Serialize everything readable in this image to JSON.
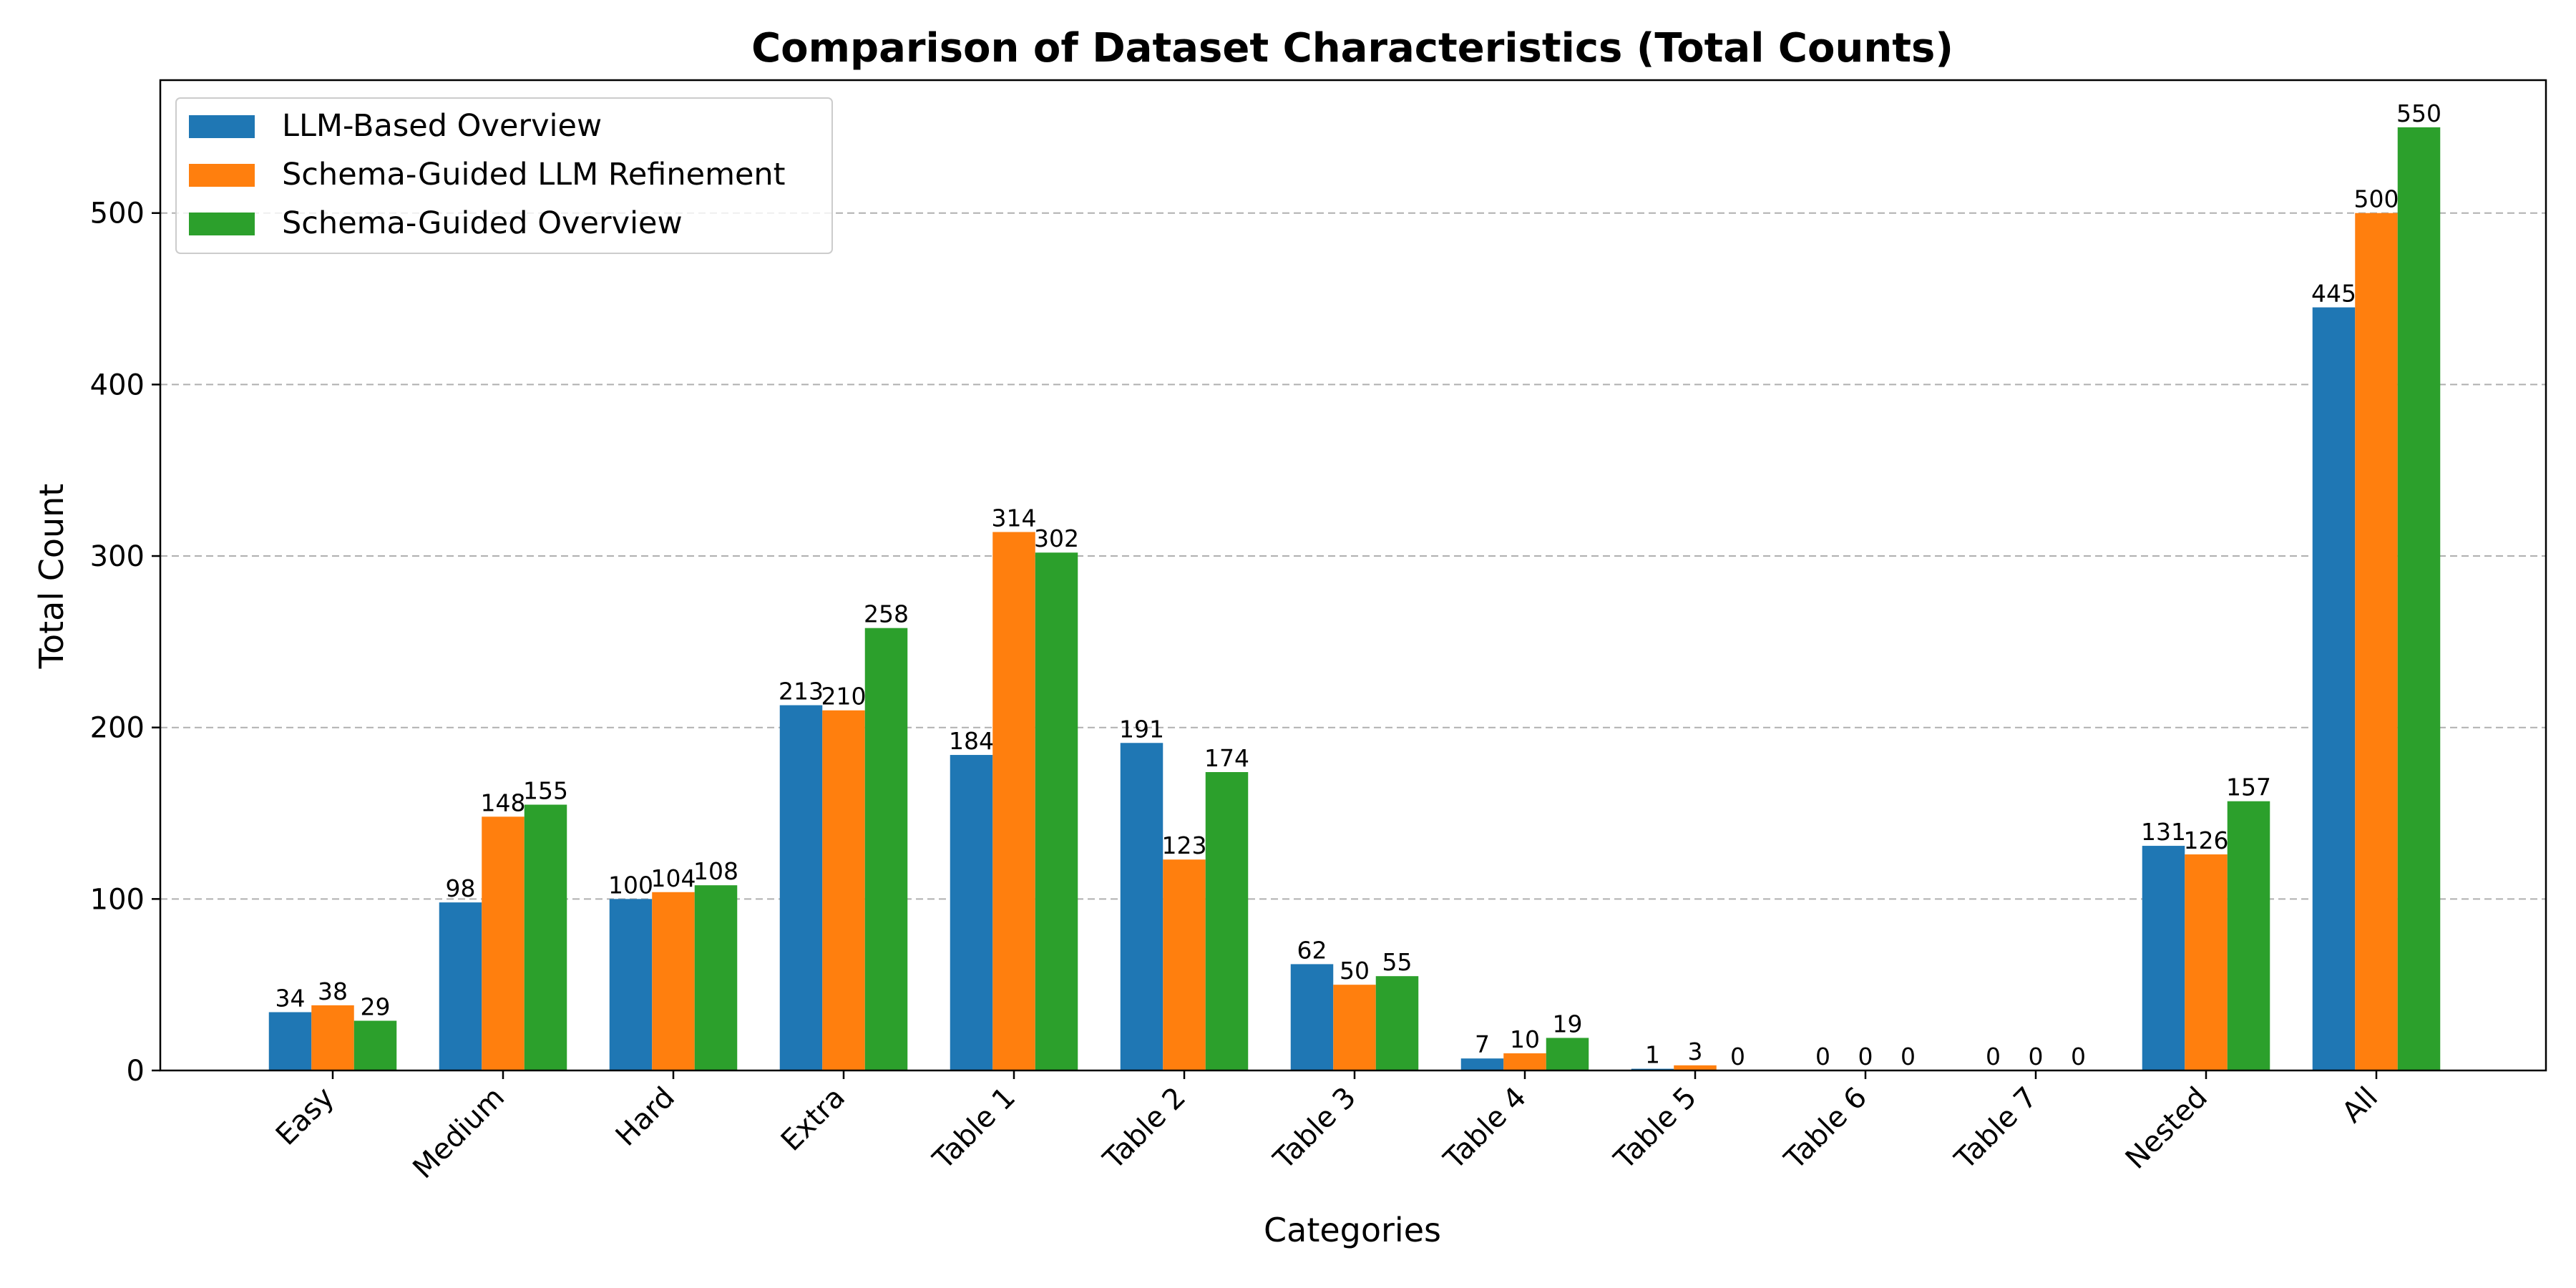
{
  "chart_data": {
    "type": "bar",
    "title": "Comparison of Dataset Characteristics (Total Counts)",
    "xlabel": "Categories",
    "ylabel": "Total Count",
    "categories": [
      "Easy",
      "Medium",
      "Hard",
      "Extra",
      "Table 1",
      "Table 2",
      "Table 3",
      "Table 4",
      "Table 5",
      "Table 6",
      "Table 7",
      "Nested",
      "All"
    ],
    "series": [
      {
        "name": "LLM-Based Overview",
        "color": "#1f77b4",
        "values": [
          34,
          98,
          100,
          213,
          184,
          191,
          62,
          7,
          1,
          0,
          0,
          131,
          445
        ]
      },
      {
        "name": "Schema-Guided LLM Refinement",
        "color": "#ff7f0e",
        "values": [
          38,
          148,
          104,
          210,
          314,
          123,
          50,
          10,
          3,
          0,
          0,
          126,
          500
        ]
      },
      {
        "name": "Schema-Guided Overview",
        "color": "#2ca02c",
        "values": [
          29,
          155,
          108,
          258,
          302,
          174,
          55,
          19,
          0,
          0,
          0,
          157,
          550
        ]
      }
    ],
    "ylim": [
      0,
      577.5
    ],
    "yticks": [
      0,
      100,
      200,
      300,
      400,
      500
    ],
    "grid": "y-dashed",
    "legend": "top-left",
    "tick_rotation": -45
  }
}
